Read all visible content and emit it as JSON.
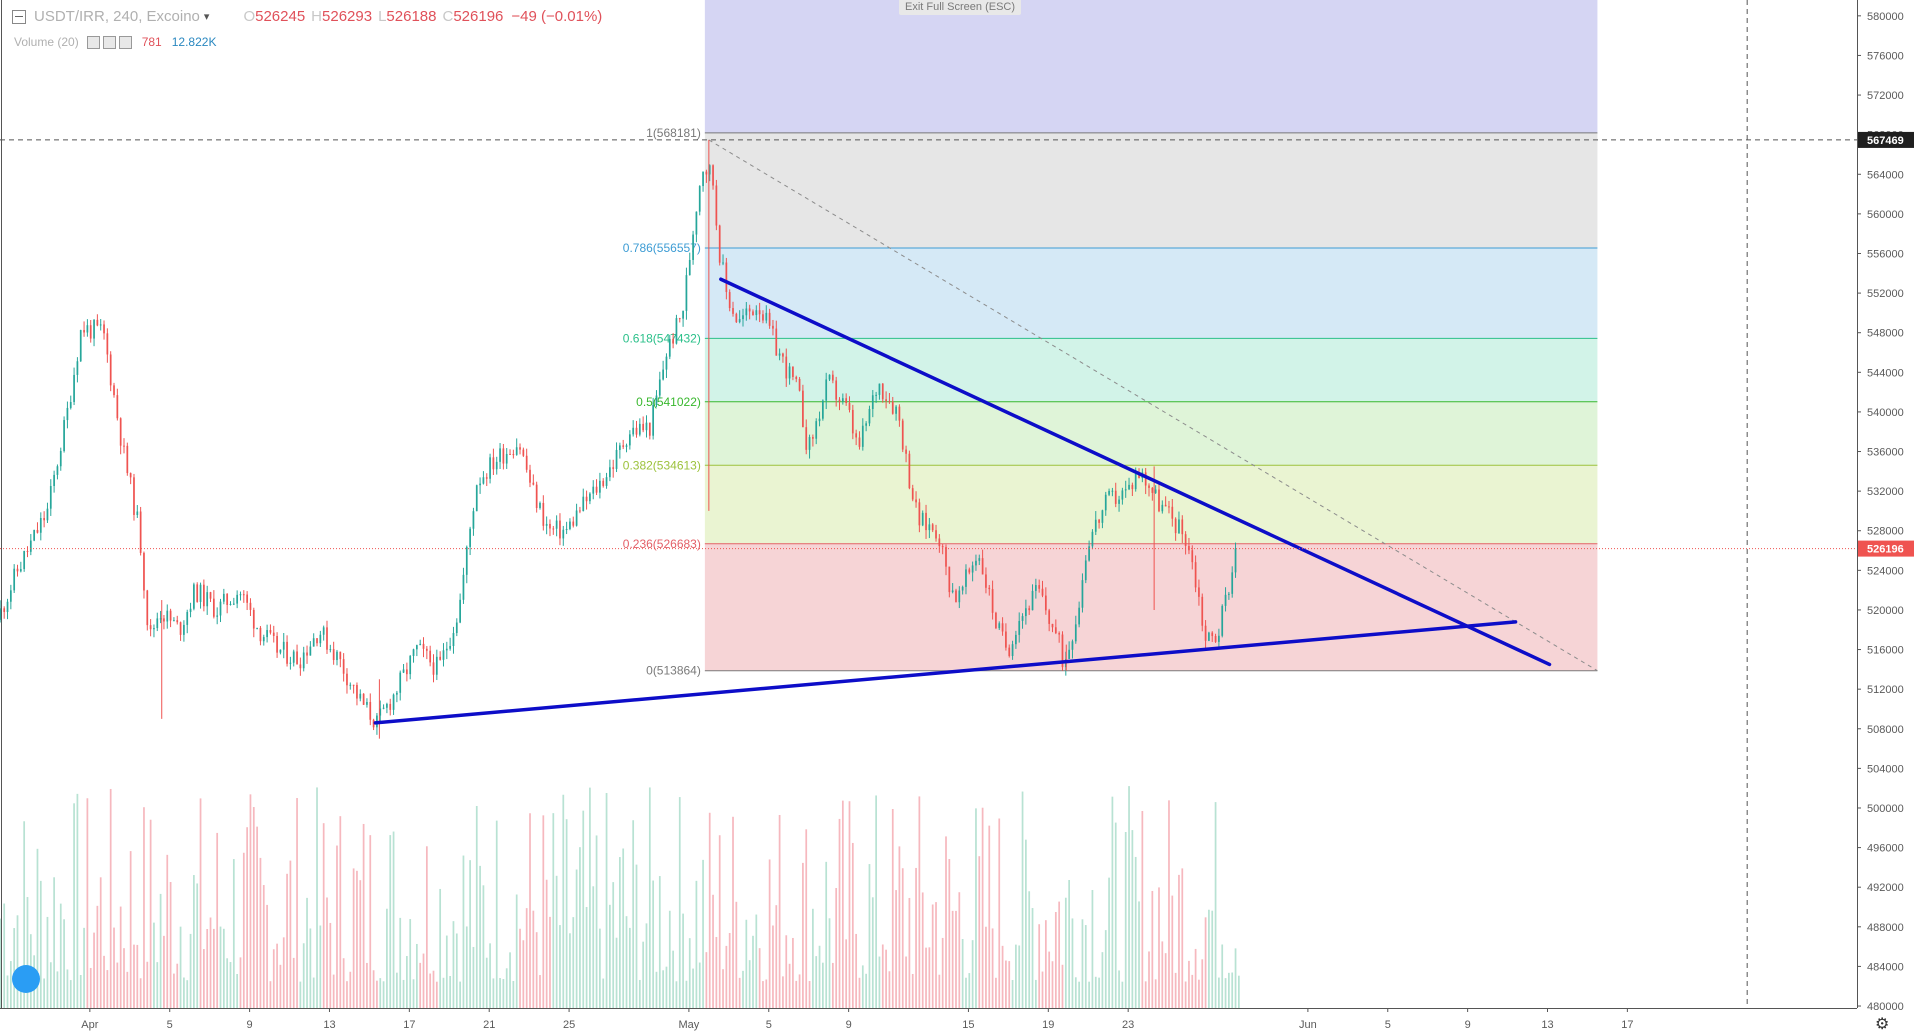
{
  "legend": {
    "symbol": "USDT/IRR, 240, Excoino",
    "open_label": "O",
    "open": "526245",
    "high_label": "H",
    "high": "526293",
    "low_label": "L",
    "low": "526188",
    "close_label": "C",
    "close": "526196",
    "change": "−49 (−0.01%)"
  },
  "volume_legend": {
    "label": "Volume (20)",
    "value1": "781",
    "value2": "12.822K"
  },
  "exit_fullscreen": "Exit Full Screen (ESC)",
  "colors": {
    "up": "#26a69a",
    "down": "#ef5350",
    "trendline": "#0d0dc8",
    "vol_up": "#b8e2d3",
    "vol_down": "#f6b8be",
    "last_price": "#ef5350",
    "crosshair_label": "#1f1f1f"
  },
  "icons": [
    "legend-collapse-icon",
    "chevron-down-icon",
    "eye-icon",
    "settings-icon",
    "close-icon",
    "tradingview-logo-icon",
    "gear-icon"
  ],
  "chart_data": {
    "type": "candlestick",
    "symbol": "USDT/IRR",
    "timeframe": "240",
    "exchange": "Excoino",
    "y_axis": {
      "ticks": [
        580000,
        576000,
        572000,
        568000,
        564000,
        560000,
        556000,
        552000,
        548000,
        544000,
        540000,
        536000,
        532000,
        528000,
        524000,
        520000,
        516000,
        512000,
        508000,
        504000,
        500000,
        496000,
        492000,
        488000,
        484000,
        480000
      ],
      "ylim": [
        479800,
        581600
      ]
    },
    "x_axis": {
      "ticks": [
        {
          "day": 0,
          "label": "Apr"
        },
        {
          "day": 4,
          "label": "5"
        },
        {
          "day": 8,
          "label": "9"
        },
        {
          "day": 12,
          "label": "13"
        },
        {
          "day": 16,
          "label": "17"
        },
        {
          "day": 20,
          "label": "21"
        },
        {
          "day": 24,
          "label": "25"
        },
        {
          "day": 30,
          "label": "May"
        },
        {
          "day": 34,
          "label": "5"
        },
        {
          "day": 38,
          "label": "9"
        },
        {
          "day": 44,
          "label": "15"
        },
        {
          "day": 48,
          "label": "19"
        },
        {
          "day": 52,
          "label": "23"
        },
        {
          "day": 61,
          "label": "Jun"
        },
        {
          "day": 65,
          "label": "5"
        },
        {
          "day": 69,
          "label": "9"
        },
        {
          "day": 73,
          "label": "13"
        },
        {
          "day": 77,
          "label": "17"
        }
      ],
      "xlim": [
        -4.5,
        88.5
      ]
    },
    "price_path": [
      [
        -4.5,
        519000
      ],
      [
        -3.5,
        524000
      ],
      [
        -2,
        530000
      ],
      [
        -1,
        540000
      ],
      [
        -0.3,
        548500
      ],
      [
        0.8,
        548000
      ],
      [
        1.8,
        536000
      ],
      [
        2.6,
        528000
      ],
      [
        3.1,
        517000
      ],
      [
        3.6,
        520000
      ],
      [
        4.6,
        518000
      ],
      [
        5.4,
        522000
      ],
      [
        6.5,
        520000
      ],
      [
        7.6,
        522000
      ],
      [
        8.6,
        518000
      ],
      [
        9.5,
        516000
      ],
      [
        10.6,
        515000
      ],
      [
        11.6,
        518000
      ],
      [
        12.6,
        515000
      ],
      [
        13.6,
        511000
      ],
      [
        14.5,
        508500
      ],
      [
        15.5,
        512000
      ],
      [
        16.5,
        516000
      ],
      [
        17.6,
        514000
      ],
      [
        18.6,
        520000
      ],
      [
        19.5,
        533000
      ],
      [
        20.6,
        535500
      ],
      [
        21.6,
        537000
      ],
      [
        22.3,
        532000
      ],
      [
        23.1,
        528000
      ],
      [
        24,
        528000
      ],
      [
        24.6,
        530000
      ],
      [
        25.4,
        532000
      ],
      [
        26.4,
        535000
      ],
      [
        27.1,
        538000
      ],
      [
        28.2,
        538500
      ],
      [
        29,
        546000
      ],
      [
        29.8,
        550000
      ],
      [
        30.5,
        561000
      ],
      [
        30.8,
        565000
      ],
      [
        31.3,
        564000
      ],
      [
        31.6,
        557000
      ],
      [
        32,
        552000
      ],
      [
        32.6,
        549000
      ],
      [
        33.6,
        551000
      ],
      [
        34.6,
        546000
      ],
      [
        35.6,
        542000
      ],
      [
        36.1,
        536000
      ],
      [
        37.1,
        543000
      ],
      [
        38.1,
        540000
      ],
      [
        38.6,
        536000
      ],
      [
        39.6,
        543000
      ],
      [
        40.6,
        540000
      ],
      [
        41.1,
        534000
      ],
      [
        41.6,
        529000
      ],
      [
        42.6,
        528000
      ],
      [
        43.1,
        523000
      ],
      [
        43.6,
        521000
      ],
      [
        44.6,
        526000
      ],
      [
        45.1,
        522000
      ],
      [
        45.6,
        518000
      ],
      [
        46.1,
        516000
      ],
      [
        46.6,
        519000
      ],
      [
        47.6,
        522000
      ],
      [
        48.6,
        517000
      ],
      [
        48.9,
        514500
      ],
      [
        49.6,
        520000
      ],
      [
        50.1,
        527000
      ],
      [
        51.1,
        531000
      ],
      [
        52.1,
        532000
      ],
      [
        52.6,
        534000
      ],
      [
        53.1,
        533000
      ],
      [
        53.6,
        531000
      ],
      [
        54.6,
        528500
      ],
      [
        55.1,
        527000
      ],
      [
        55.6,
        522000
      ],
      [
        56,
        517000
      ],
      [
        56.6,
        517500
      ],
      [
        57.1,
        522000
      ],
      [
        57.6,
        526196
      ]
    ],
    "wicks": [
      {
        "day": 3.6,
        "low": 509000,
        "high": 521000
      },
      {
        "day": 14.5,
        "low": 507000,
        "high": 513000
      },
      {
        "day": 31,
        "low": 530000,
        "high": 567469
      },
      {
        "day": 53.3,
        "low": 520000,
        "high": 534500
      },
      {
        "day": 48.9,
        "low": 513864,
        "high": 516500
      }
    ],
    "volume": {
      "ylim": [
        0,
        100
      ],
      "last_day": 57.6
    },
    "fibonacci": {
      "start_day": 30.8,
      "end_day": 75.5,
      "levels": [
        {
          "ratio": 1,
          "price": 568181,
          "label": "1(568181)",
          "color": "#787878",
          "fill": "#e6e6e6"
        },
        {
          "ratio": 0.786,
          "price": 556557,
          "label": "0.786(556557)",
          "color": "#3d9cd4",
          "fill": "#d5e9f6"
        },
        {
          "ratio": 0.618,
          "price": 547432,
          "label": "0.618(547432)",
          "color": "#2bc08a",
          "fill": "#d2f3e8"
        },
        {
          "ratio": 0.5,
          "price": 541022,
          "label": "0.5(541022)",
          "color": "#39b82e",
          "fill": "#dff4d8"
        },
        {
          "ratio": 0.382,
          "price": 534613,
          "label": "0.382(534613)",
          "color": "#9cc23c",
          "fill": "#eaf4d2"
        },
        {
          "ratio": 0.236,
          "price": 526683,
          "label": "0.236(526683)",
          "color": "#e36068",
          "fill": "#f6d4d6"
        },
        {
          "ratio": 0,
          "price": 513864,
          "label": "0(513864)",
          "color": "#7a7a7a",
          "fill": "#f6d4d6"
        }
      ],
      "extension_fill": "#d5d5f3"
    },
    "trendlines": [
      {
        "from": [
          31.6,
          553400
        ],
        "to": [
          73.1,
          514500
        ]
      },
      {
        "from": [
          14.3,
          508600
        ],
        "to": [
          71.4,
          518800
        ]
      }
    ],
    "diagonal": {
      "from": [
        31,
        567469
      ],
      "to": [
        75.5,
        513864
      ]
    },
    "last_price": {
      "value": 526196,
      "label": "526196"
    },
    "crosshair": {
      "price": 567469,
      "label": "567469",
      "day": 83
    }
  }
}
